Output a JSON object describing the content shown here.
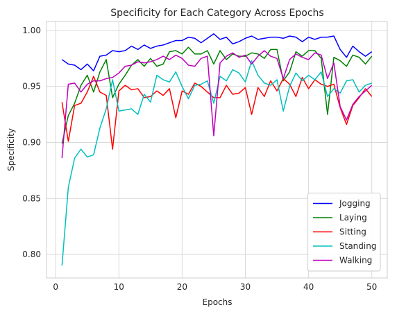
{
  "chart_data": {
    "type": "line",
    "title": "Specificity for Each Category Across Epochs",
    "xlabel": "Epochs",
    "ylabel": "Specificity",
    "xlim": [
      -1.45,
      52.45
    ],
    "ylim": [
      0.779,
      1.008
    ],
    "xticks": [
      0,
      10,
      20,
      30,
      40,
      50
    ],
    "yticks": [
      0.8,
      0.85,
      0.9,
      0.95,
      1.0
    ],
    "xtick_labels": [
      "0",
      "10",
      "20",
      "30",
      "40",
      "50"
    ],
    "ytick_labels": [
      "0.80",
      "0.85",
      "0.90",
      "0.95",
      "1.00"
    ],
    "grid": true,
    "legend_position": "lower-right",
    "x": [
      1,
      2,
      3,
      4,
      5,
      6,
      7,
      8,
      9,
      10,
      11,
      12,
      13,
      14,
      15,
      16,
      17,
      18,
      19,
      20,
      21,
      22,
      23,
      24,
      25,
      26,
      27,
      28,
      29,
      30,
      31,
      32,
      33,
      34,
      35,
      36,
      37,
      38,
      39,
      40,
      41,
      42,
      43,
      44,
      45,
      46,
      47,
      48,
      49,
      50
    ],
    "series": [
      {
        "name": "Jogging",
        "color": "#0000ff",
        "values": [
          0.974,
          0.97,
          0.969,
          0.965,
          0.97,
          0.964,
          0.977,
          0.978,
          0.982,
          0.981,
          0.982,
          0.986,
          0.983,
          0.987,
          0.984,
          0.986,
          0.987,
          0.989,
          0.991,
          0.991,
          0.994,
          0.993,
          0.989,
          0.993,
          0.997,
          0.992,
          0.994,
          0.988,
          0.99,
          0.993,
          0.995,
          0.992,
          0.993,
          0.994,
          0.994,
          0.993,
          0.995,
          0.994,
          0.99,
          0.994,
          0.992,
          0.994,
          0.994,
          0.995,
          0.983,
          0.976,
          0.986,
          0.981,
          0.977,
          0.981
        ]
      },
      {
        "name": "Laying",
        "color": "#008000",
        "values": [
          0.899,
          0.924,
          0.935,
          0.951,
          0.96,
          0.945,
          0.963,
          0.974,
          0.94,
          0.952,
          0.96,
          0.969,
          0.974,
          0.968,
          0.975,
          0.968,
          0.97,
          0.981,
          0.982,
          0.979,
          0.985,
          0.979,
          0.979,
          0.982,
          0.97,
          0.982,
          0.974,
          0.979,
          0.977,
          0.977,
          0.98,
          0.979,
          0.975,
          0.983,
          0.983,
          0.955,
          0.963,
          0.981,
          0.977,
          0.982,
          0.982,
          0.975,
          0.925,
          0.976,
          0.973,
          0.968,
          0.978,
          0.976,
          0.97,
          0.977
        ]
      },
      {
        "name": "Sitting",
        "color": "#ff0000",
        "values": [
          0.936,
          0.901,
          0.933,
          0.935,
          0.945,
          0.959,
          0.945,
          0.942,
          0.894,
          0.946,
          0.951,
          0.947,
          0.948,
          0.94,
          0.941,
          0.946,
          0.942,
          0.948,
          0.922,
          0.946,
          0.943,
          0.953,
          0.95,
          0.945,
          0.94,
          0.94,
          0.951,
          0.943,
          0.944,
          0.949,
          0.925,
          0.949,
          0.941,
          0.955,
          0.946,
          0.957,
          0.952,
          0.941,
          0.958,
          0.948,
          0.956,
          0.952,
          0.95,
          0.952,
          0.931,
          0.916,
          0.933,
          0.94,
          0.948,
          0.941
        ]
      },
      {
        "name": "Standing",
        "color": "#00bfbf",
        "values": [
          0.79,
          0.86,
          0.886,
          0.894,
          0.887,
          0.889,
          0.913,
          0.93,
          0.956,
          0.928,
          0.929,
          0.93,
          0.925,
          0.943,
          0.936,
          0.96,
          0.956,
          0.954,
          0.963,
          0.95,
          0.939,
          0.951,
          0.952,
          0.955,
          0.935,
          0.959,
          0.955,
          0.965,
          0.962,
          0.954,
          0.973,
          0.96,
          0.953,
          0.951,
          0.956,
          0.928,
          0.95,
          0.962,
          0.955,
          0.96,
          0.956,
          0.963,
          0.941,
          0.948,
          0.944,
          0.955,
          0.956,
          0.945,
          0.951,
          0.953
        ]
      },
      {
        "name": "Walking",
        "color": "#bf00bf",
        "values": [
          0.886,
          0.952,
          0.953,
          0.945,
          0.952,
          0.955,
          0.955,
          0.957,
          0.958,
          0.962,
          0.968,
          0.969,
          0.972,
          0.971,
          0.972,
          0.974,
          0.977,
          0.974,
          0.978,
          0.975,
          0.969,
          0.968,
          0.975,
          0.977,
          0.906,
          0.971,
          0.977,
          0.98,
          0.976,
          0.978,
          0.97,
          0.977,
          0.982,
          0.977,
          0.975,
          0.957,
          0.974,
          0.979,
          0.976,
          0.974,
          0.98,
          0.978,
          0.957,
          0.971,
          0.932,
          0.92,
          0.934,
          0.941,
          0.946,
          0.951
        ]
      }
    ]
  }
}
